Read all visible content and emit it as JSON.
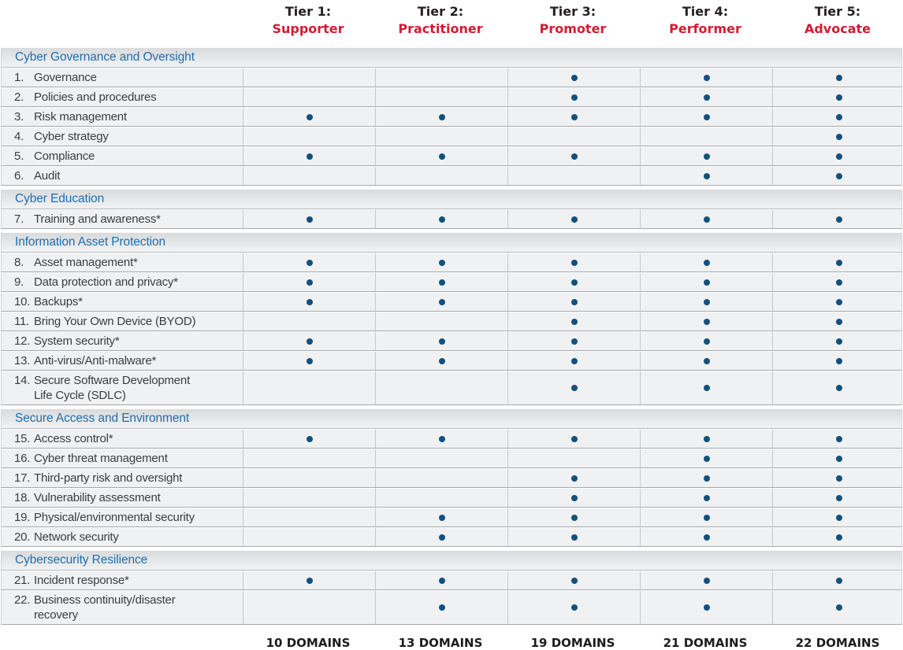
{
  "colors": {
    "tier_name_red": "#d41a32",
    "section_title_blue": "#1d6fae",
    "dot_navy": "#12517e",
    "row_background": "#f0f1f3"
  },
  "tiers": [
    {
      "prefix": "Tier 1:",
      "name": "Supporter"
    },
    {
      "prefix": "Tier 2:",
      "name": "Practitioner"
    },
    {
      "prefix": "Tier 3:",
      "name": "Promoter"
    },
    {
      "prefix": "Tier 4:",
      "name": "Performer"
    },
    {
      "prefix": "Tier 5:",
      "name": "Advocate"
    }
  ],
  "sections": [
    {
      "title": "Cyber Governance and Oversight",
      "rows": [
        {
          "num": "1.",
          "label": "Governance",
          "label2": "",
          "tiers": [
            false,
            false,
            true,
            true,
            true
          ]
        },
        {
          "num": "2.",
          "label": "Policies and procedures",
          "label2": "",
          "tiers": [
            false,
            false,
            true,
            true,
            true
          ]
        },
        {
          "num": "3.",
          "label": "Risk management",
          "label2": "",
          "tiers": [
            true,
            true,
            true,
            true,
            true
          ]
        },
        {
          "num": "4.",
          "label": "Cyber strategy",
          "label2": "",
          "tiers": [
            false,
            false,
            false,
            false,
            true
          ]
        },
        {
          "num": "5.",
          "label": "Compliance",
          "label2": "",
          "tiers": [
            true,
            true,
            true,
            true,
            true
          ]
        },
        {
          "num": "6.",
          "label": "Audit",
          "label2": "",
          "tiers": [
            false,
            false,
            false,
            true,
            true
          ]
        }
      ]
    },
    {
      "title": "Cyber Education",
      "rows": [
        {
          "num": "7.",
          "label": "Training and awareness*",
          "label2": "",
          "tiers": [
            true,
            true,
            true,
            true,
            true
          ]
        }
      ]
    },
    {
      "title": "Information Asset Protection",
      "rows": [
        {
          "num": "8.",
          "label": "Asset management*",
          "label2": "",
          "tiers": [
            true,
            true,
            true,
            true,
            true
          ]
        },
        {
          "num": "9.",
          "label": "Data protection and privacy*",
          "label2": "",
          "tiers": [
            true,
            true,
            true,
            true,
            true
          ]
        },
        {
          "num": "10.",
          "label": "Backups*",
          "label2": "",
          "tiers": [
            true,
            true,
            true,
            true,
            true
          ]
        },
        {
          "num": "11.",
          "label": "Bring Your Own Device (BYOD)",
          "label2": "",
          "tiers": [
            false,
            false,
            true,
            true,
            true
          ]
        },
        {
          "num": "12.",
          "label": "System security*",
          "label2": "",
          "tiers": [
            true,
            true,
            true,
            true,
            true
          ]
        },
        {
          "num": "13.",
          "label": "Anti-virus/Anti-malware*",
          "label2": "",
          "tiers": [
            true,
            true,
            true,
            true,
            true
          ]
        },
        {
          "num": "14.",
          "label": "Secure Software Development",
          "label2": "Life Cycle (SDLC)",
          "tiers": [
            false,
            false,
            true,
            true,
            true
          ]
        }
      ]
    },
    {
      "title": "Secure Access and Environment",
      "rows": [
        {
          "num": "15.",
          "label": "Access control*",
          "label2": "",
          "tiers": [
            true,
            true,
            true,
            true,
            true
          ]
        },
        {
          "num": "16.",
          "label": "Cyber threat management",
          "label2": "",
          "tiers": [
            false,
            false,
            false,
            true,
            true
          ]
        },
        {
          "num": "17.",
          "label": "Third-party risk and oversight",
          "label2": "",
          "tiers": [
            false,
            false,
            true,
            true,
            true
          ]
        },
        {
          "num": "18.",
          "label": "Vulnerability assessment",
          "label2": "",
          "tiers": [
            false,
            false,
            true,
            true,
            true
          ]
        },
        {
          "num": "19.",
          "label": "Physical/environmental security",
          "label2": "",
          "tiers": [
            false,
            true,
            true,
            true,
            true
          ]
        },
        {
          "num": "20.",
          "label": "Network security",
          "label2": "",
          "tiers": [
            false,
            true,
            true,
            true,
            true
          ]
        }
      ]
    },
    {
      "title": "Cybersecurity Resilience",
      "rows": [
        {
          "num": "21.",
          "label": "Incident response*",
          "label2": "",
          "tiers": [
            true,
            true,
            true,
            true,
            true
          ]
        },
        {
          "num": "22.",
          "label": "Business continuity/disaster",
          "label2": "recovery",
          "tiers": [
            false,
            true,
            true,
            true,
            true
          ]
        }
      ]
    }
  ],
  "totals": [
    "10 DOMAINS",
    "13 DOMAINS",
    "19 DOMAINS",
    "21 DOMAINS",
    "22 DOMAINS"
  ]
}
